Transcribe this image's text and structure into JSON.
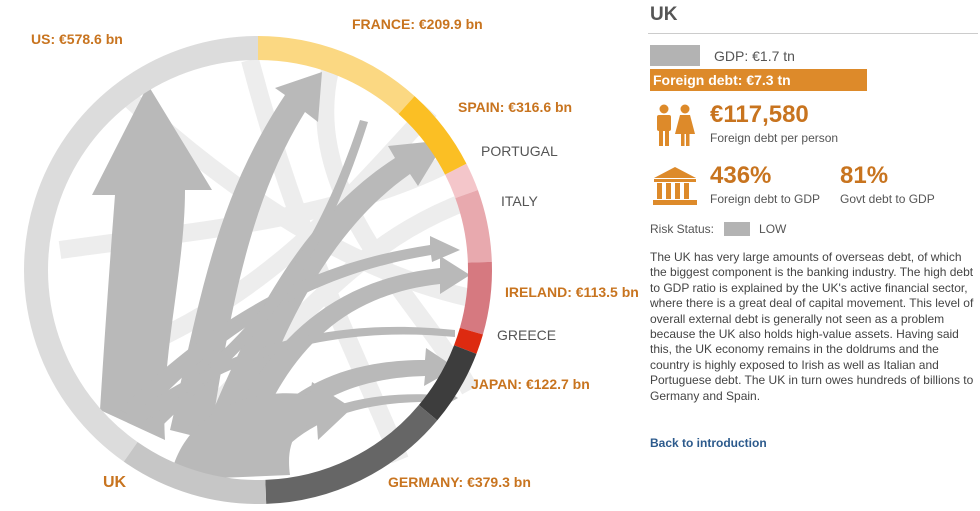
{
  "diagram": {
    "center_label": "UK",
    "segments": [
      {
        "id": "us",
        "label": "US: €578.6 bn",
        "color": "#dcdcdc",
        "bold": true
      },
      {
        "id": "france",
        "label": "FRANCE: €209.9 bn",
        "color": "#fbd882",
        "bold": true
      },
      {
        "id": "spain",
        "label": "SPAIN: €316.6 bn",
        "color": "#fbbf24",
        "bold": true
      },
      {
        "id": "portugal",
        "label": "PORTUGAL",
        "color": "#f4c6ca",
        "bold": false
      },
      {
        "id": "italy",
        "label": "ITALY",
        "color": "#e8a9ae",
        "bold": false
      },
      {
        "id": "ireland",
        "label": "IRELAND: €113.5 bn",
        "color": "#d67980",
        "bold": true
      },
      {
        "id": "greece",
        "label": "GREECE",
        "color": "#dd2a10",
        "bold": false
      },
      {
        "id": "japan",
        "label": "JAPAN: €122.7 bn",
        "color": "#3d3d3d",
        "bold": true
      },
      {
        "id": "germany",
        "label": "GERMANY: €379.3 bn",
        "color": "#666666",
        "bold": true
      },
      {
        "id": "uk",
        "label": "",
        "color": "#c6c6c6",
        "bold": false
      }
    ],
    "flow_color": "#b8b8b8",
    "label_color": "#c8741f"
  },
  "panel": {
    "title": "UK",
    "gdp_text": "GDP: €1.7 tn",
    "foreign_debt_text": "Foreign debt: €7.3 tn",
    "per_person_value": "€117,580",
    "per_person_caption": "Foreign debt per person",
    "debt_gdp_value": "436%",
    "debt_gdp_caption": "Foreign debt to GDP",
    "govt_debt_value": "81%",
    "govt_debt_caption": "Govt debt to GDP",
    "risk_label": "Risk Status:",
    "risk_value": "LOW",
    "description": "The UK has very large amounts of overseas debt, of which the biggest component is the banking industry. The high debt to GDP ratio is explained by the UK's active financial sector, where there is a great deal of capital movement. This level of overall external debt is generally not seen as a problem because the UK also holds high-value assets. Having said this, the UK economy remains in the doldrums and the country is highly exposed to Irish as well as Italian and Portuguese debt. The UK in turn owes hundreds of billions to Germany and Spain.",
    "back_link": "Back to introduction",
    "accent": "#dd8a2a"
  }
}
